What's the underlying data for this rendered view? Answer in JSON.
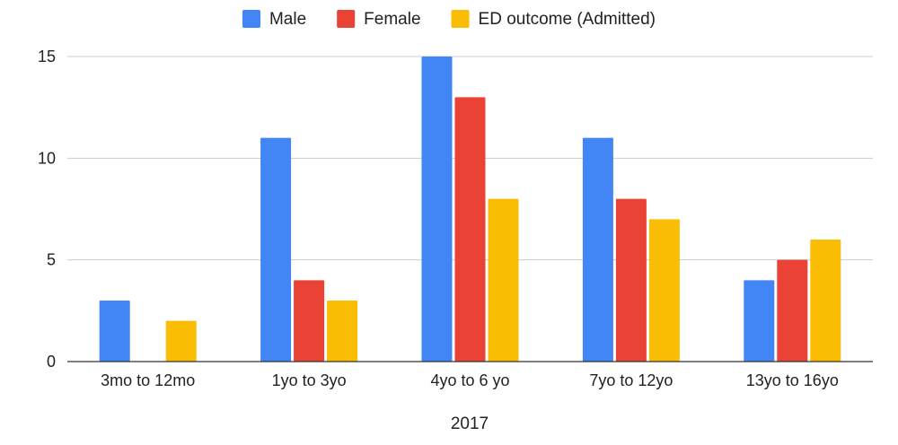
{
  "chart_data": {
    "type": "bar",
    "title": "",
    "xlabel": "2017",
    "ylabel": "",
    "categories": [
      "3mo to 12mo",
      "1yo to 3yo",
      "4yo to 6 yo",
      "7yo to 12yo",
      "13yo to 16yo"
    ],
    "series": [
      {
        "name": "Male",
        "color": "#4285F4",
        "values": [
          3,
          11,
          15,
          11,
          4
        ]
      },
      {
        "name": "Female",
        "color": "#EA4335",
        "values": [
          0,
          4,
          13,
          8,
          5
        ]
      },
      {
        "name": "ED outcome (Admitted)",
        "color": "#FBBC04",
        "values": [
          2,
          3,
          8,
          7,
          6
        ]
      }
    ],
    "ylim": [
      0,
      15
    ],
    "yticks": [
      0,
      5,
      10,
      15
    ],
    "grid": true,
    "legend_position": "top-center"
  }
}
